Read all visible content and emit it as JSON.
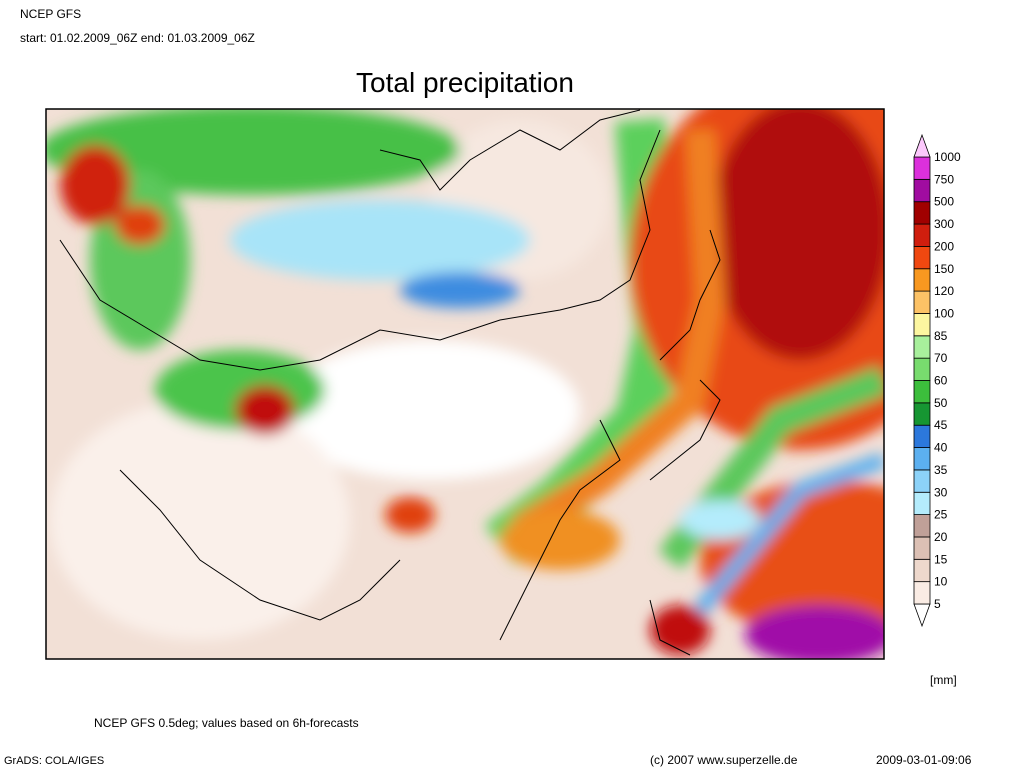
{
  "header": {
    "model": "NCEP GFS",
    "period": "start: 01.02.2009_06Z end: 01.03.2009_06Z"
  },
  "title": "Total precipitation",
  "legend": {
    "levels": [
      5,
      10,
      15,
      20,
      25,
      30,
      35,
      40,
      45,
      50,
      60,
      70,
      85,
      100,
      120,
      150,
      200,
      300,
      500,
      750,
      1000
    ],
    "colors": [
      "#ffffff",
      "#faece4",
      "#eed8cc",
      "#dcc0b4",
      "#c0a098",
      "#b4ecfc",
      "#8cd2f8",
      "#5cb0f0",
      "#2c78dc",
      "#169632",
      "#3cbe3c",
      "#78dc6e",
      "#a8f09c",
      "#fcf6a0",
      "#fcc266",
      "#f89820",
      "#f04810",
      "#d01e0e",
      "#a00000",
      "#a00ca0",
      "#dc30dc",
      "#fcc8fc"
    ],
    "unit": "[mm]"
  },
  "footer": {
    "note": "NCEP GFS 0.5deg; values based on 6h-forecasts",
    "software": "GrADS: COLA/IGES",
    "copyright": "(c) 2007 www.superzelle.de",
    "timestamp": "2009-03-01-09:06"
  }
}
